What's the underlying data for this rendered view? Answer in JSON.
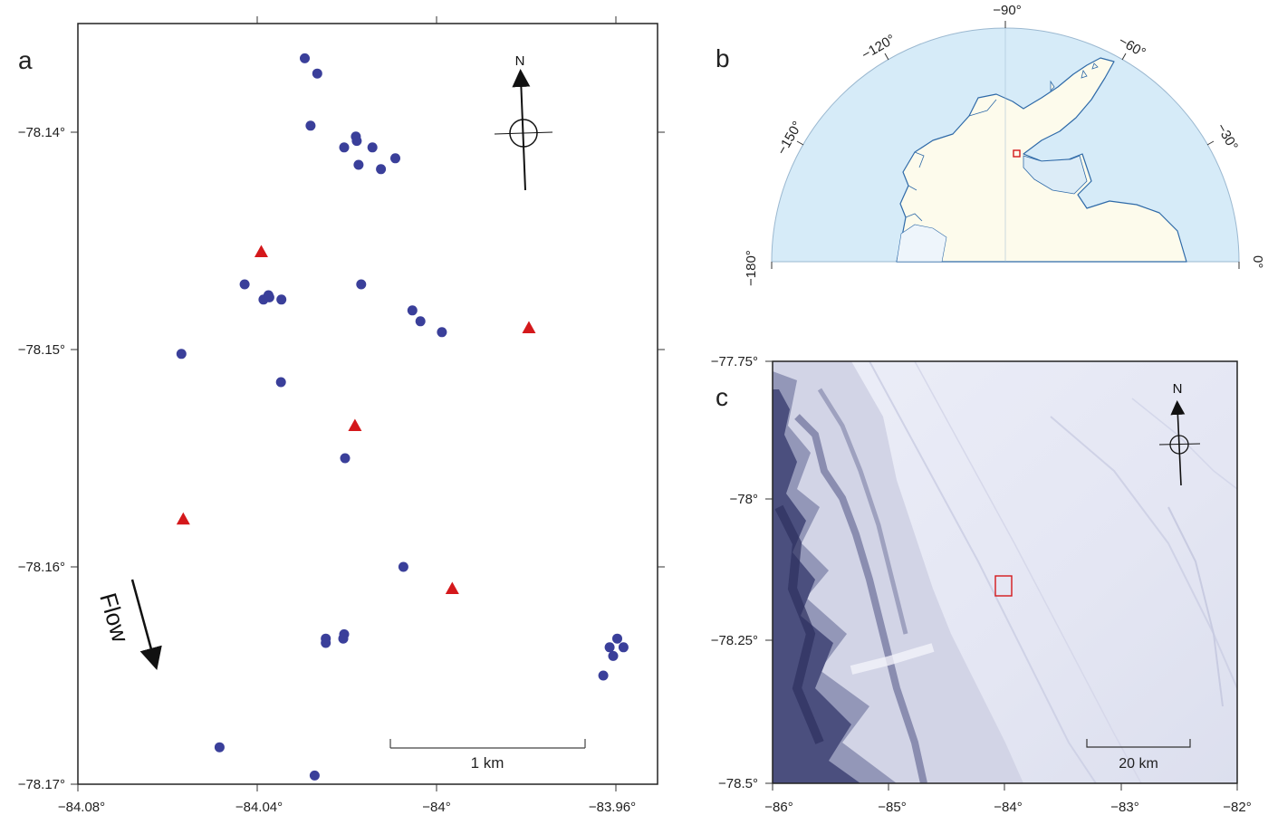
{
  "panel_a": {
    "letter": "a",
    "x_ticks": [
      "−84.08°",
      "−84.04°",
      "−84°",
      "−83.96°"
    ],
    "y_ticks": [
      "−78.14°",
      "−78.15°",
      "−78.16°",
      "−78.17°"
    ],
    "north_label": "N",
    "flow_label": "Flow",
    "scale_label": "1 km",
    "x_range": [
      -84.08,
      -83.95
    ],
    "y_range": [
      -78.135,
      -78.17
    ],
    "dot_color": "#3a3f9a",
    "triangle_color": "#d4181b",
    "dots": [
      [
        -84.0294,
        -78.1366
      ],
      [
        -84.0266,
        -78.1373
      ],
      [
        -84.0281,
        -78.1397
      ],
      [
        -84.0206,
        -78.1407
      ],
      [
        -84.018,
        -78.1402
      ],
      [
        -84.0178,
        -78.1404
      ],
      [
        -84.0143,
        -78.1407
      ],
      [
        -84.0174,
        -78.1415
      ],
      [
        -84.0124,
        -78.1417
      ],
      [
        -84.0092,
        -78.1412
      ],
      [
        -84.0428,
        -78.147
      ],
      [
        -84.0386,
        -78.1477
      ],
      [
        -84.0375,
        -78.1475
      ],
      [
        -84.0373,
        -78.1476
      ],
      [
        -84.0346,
        -78.1477
      ],
      [
        -84.0168,
        -78.147
      ],
      [
        -84.0054,
        -78.1482
      ],
      [
        -84.0036,
        -78.1487
      ],
      [
        -83.9988,
        -78.1492
      ],
      [
        -84.0569,
        -78.1502
      ],
      [
        -84.0347,
        -78.1515
      ],
      [
        -84.0204,
        -78.155
      ],
      [
        -84.0074,
        -78.16
      ],
      [
        -84.0247,
        -78.1633
      ],
      [
        -84.0247,
        -78.1635
      ],
      [
        -84.0206,
        -78.1631
      ],
      [
        -84.0208,
        -78.1633
      ],
      [
        -83.9597,
        -78.1633
      ],
      [
        -83.9614,
        -78.1637
      ],
      [
        -83.9583,
        -78.1637
      ],
      [
        -83.9606,
        -78.1641
      ],
      [
        -83.9628,
        -78.165
      ],
      [
        -84.0484,
        -78.1683
      ],
      [
        -84.0272,
        -78.1696
      ]
    ],
    "triangles": [
      [
        -84.0391,
        -78.1455
      ],
      [
        -83.9794,
        -78.149
      ],
      [
        -84.0182,
        -78.1535
      ],
      [
        -84.0565,
        -78.1578
      ],
      [
        -83.9965,
        -78.161
      ]
    ]
  },
  "panel_b": {
    "letter": "b",
    "lon_labels": [
      "−90°",
      "−120°",
      "−60°",
      "−150°",
      "−30°",
      "−180°",
      "0°"
    ],
    "ocean_color": "#d6ebf8",
    "land_color": "#fdfbec",
    "coast_color": "#2f6aa8",
    "marker_color": "#d4181b"
  },
  "panel_c": {
    "letter": "c",
    "x_ticks": [
      "−86°",
      "−85°",
      "−84°",
      "−83°",
      "−82°"
    ],
    "y_ticks": [
      "−77.75°",
      "−78°",
      "−78.25°",
      "−78.5°"
    ],
    "north_label": "N",
    "scale_label": "20 km",
    "marker_color": "#d4181b"
  }
}
